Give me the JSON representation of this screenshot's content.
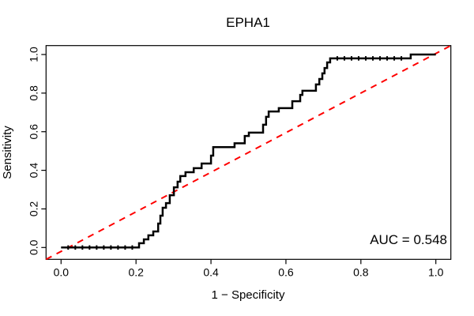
{
  "page": {
    "background": "#ffffff"
  },
  "chart_data": {
    "type": "line",
    "subtype": "roc-step-curve",
    "title": "EPHA1",
    "xlabel": "1 − Specificity",
    "ylabel": "Sensitivity",
    "xlim": [
      0,
      1
    ],
    "ylim": [
      0,
      1
    ],
    "grid": false,
    "legend": null,
    "x_ticks": {
      "values": [
        0.0,
        0.2,
        0.4,
        0.6,
        0.8,
        1.0
      ],
      "labels": [
        "0.0",
        "0.2",
        "0.4",
        "0.6",
        "0.8",
        "1.0"
      ]
    },
    "y_ticks": {
      "values": [
        0.0,
        0.2,
        0.4,
        0.6,
        0.8,
        1.0
      ],
      "labels": [
        "0.0",
        "0.2",
        "0.4",
        "0.6",
        "0.8",
        "1.0"
      ]
    },
    "annotation": {
      "auc_label": "AUC = 0.548",
      "auc_value": 0.548
    },
    "series": [
      {
        "name": "ROC curve",
        "color": "#000000",
        "style": "solid",
        "line_width": 2.5,
        "step_points": [
          [
            0.0,
            0.0
          ],
          [
            0.208,
            0.0
          ],
          [
            0.208,
            0.022
          ],
          [
            0.221,
            0.022
          ],
          [
            0.221,
            0.042
          ],
          [
            0.233,
            0.042
          ],
          [
            0.233,
            0.063
          ],
          [
            0.246,
            0.063
          ],
          [
            0.246,
            0.083
          ],
          [
            0.259,
            0.083
          ],
          [
            0.259,
            0.124
          ],
          [
            0.265,
            0.124
          ],
          [
            0.265,
            0.165
          ],
          [
            0.271,
            0.165
          ],
          [
            0.271,
            0.206
          ],
          [
            0.28,
            0.206
          ],
          [
            0.28,
            0.23
          ],
          [
            0.29,
            0.23
          ],
          [
            0.29,
            0.271
          ],
          [
            0.301,
            0.271
          ],
          [
            0.301,
            0.312
          ],
          [
            0.311,
            0.312
          ],
          [
            0.311,
            0.341
          ],
          [
            0.318,
            0.341
          ],
          [
            0.318,
            0.37
          ],
          [
            0.332,
            0.37
          ],
          [
            0.332,
            0.39
          ],
          [
            0.354,
            0.39
          ],
          [
            0.354,
            0.411
          ],
          [
            0.375,
            0.411
          ],
          [
            0.375,
            0.435
          ],
          [
            0.4,
            0.435
          ],
          [
            0.4,
            0.476
          ],
          [
            0.406,
            0.476
          ],
          [
            0.406,
            0.52
          ],
          [
            0.463,
            0.52
          ],
          [
            0.463,
            0.54
          ],
          [
            0.49,
            0.54
          ],
          [
            0.49,
            0.578
          ],
          [
            0.501,
            0.578
          ],
          [
            0.501,
            0.595
          ],
          [
            0.539,
            0.595
          ],
          [
            0.539,
            0.636
          ],
          [
            0.547,
            0.636
          ],
          [
            0.547,
            0.677
          ],
          [
            0.554,
            0.677
          ],
          [
            0.554,
            0.705
          ],
          [
            0.581,
            0.705
          ],
          [
            0.581,
            0.722
          ],
          [
            0.617,
            0.722
          ],
          [
            0.617,
            0.758
          ],
          [
            0.638,
            0.758
          ],
          [
            0.638,
            0.791
          ],
          [
            0.644,
            0.791
          ],
          [
            0.644,
            0.812
          ],
          [
            0.68,
            0.812
          ],
          [
            0.68,
            0.845
          ],
          [
            0.689,
            0.845
          ],
          [
            0.689,
            0.873
          ],
          [
            0.697,
            0.873
          ],
          [
            0.697,
            0.902
          ],
          [
            0.703,
            0.902
          ],
          [
            0.703,
            0.93
          ],
          [
            0.71,
            0.93
          ],
          [
            0.71,
            0.959
          ],
          [
            0.718,
            0.959
          ],
          [
            0.718,
            0.98
          ],
          [
            0.933,
            0.98
          ],
          [
            0.933,
            1.0
          ],
          [
            1.0,
            1.0
          ]
        ],
        "point_marks": {
          "bottom": {
            "level": 0.0,
            "t": [
              0.019,
              0.038,
              0.057,
              0.076,
              0.095,
              0.114,
              0.133,
              0.152,
              0.171,
              0.19
            ]
          },
          "top": {
            "level": 0.98,
            "t": [
              0.737,
              0.756,
              0.775,
              0.794,
              0.813,
              0.832,
              0.851,
              0.87,
              0.889,
              0.908
            ]
          }
        }
      },
      {
        "name": "chance reference line",
        "color": "#ff0000",
        "style": "dashed",
        "line_width": 2,
        "points": [
          [
            0,
            0
          ],
          [
            1,
            1
          ]
        ]
      }
    ]
  }
}
